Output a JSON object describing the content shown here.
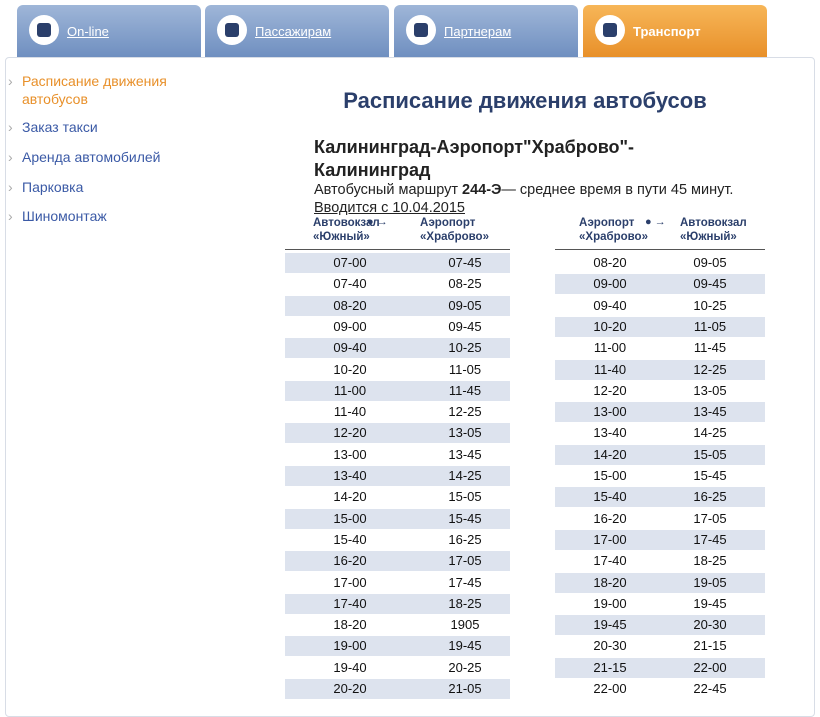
{
  "tabs": [
    "On-line",
    "Пассажирам",
    "Партнерам",
    "Транспорт"
  ],
  "sidebar": [
    "Расписание движения автобусов",
    "Заказ такси",
    "Аренда автомобилей",
    "Парковка",
    "Шиномонтаж"
  ],
  "title": "Расписание движения автобусов",
  "route": {
    "title": "Калининград-Аэропорт\"Храброво\"-Калининград",
    "desc_prefix": "Автобусный маршрут",
    "route_number": "244-Э",
    "desc_suffix": "— среднее время в пути 45 минут.",
    "link": "Вводится с 10.04.2015"
  },
  "tables": [
    {
      "headers": [
        "Автовокзал «Южный»",
        "Аэропорт «Храброво»"
      ],
      "rows": [
        [
          "07-00",
          "07-45"
        ],
        [
          "07-40",
          "08-25"
        ],
        [
          "08-20",
          "09-05"
        ],
        [
          "09-00",
          "09-45"
        ],
        [
          "09-40",
          "10-25"
        ],
        [
          "10-20",
          "11-05"
        ],
        [
          "11-00",
          "11-45"
        ],
        [
          "11-40",
          "12-25"
        ],
        [
          "12-20",
          "13-05"
        ],
        [
          "13-00",
          "13-45"
        ],
        [
          "13-40",
          "14-25"
        ],
        [
          "14-20",
          "15-05"
        ],
        [
          "15-00",
          "15-45"
        ],
        [
          "15-40",
          "16-25"
        ],
        [
          "16-20",
          "17-05"
        ],
        [
          "17-00",
          "17-45"
        ],
        [
          "17-40",
          "18-25"
        ],
        [
          "18-20",
          "1905"
        ],
        [
          "19-00",
          "19-45"
        ],
        [
          "19-40",
          "20-25"
        ],
        [
          "20-20",
          "21-05"
        ]
      ]
    },
    {
      "headers": [
        "Аэропорт «Храброво»",
        "Автовокзал «Южный»"
      ],
      "rows": [
        [
          "08-20",
          "09-05"
        ],
        [
          "09-00",
          "09-45"
        ],
        [
          "09-40",
          "10-25"
        ],
        [
          "10-20",
          "11-05"
        ],
        [
          "11-00",
          "11-45"
        ],
        [
          "11-40",
          "12-25"
        ],
        [
          "12-20",
          "13-05"
        ],
        [
          "13-00",
          "13-45"
        ],
        [
          "13-40",
          "14-25"
        ],
        [
          "14-20",
          "15-05"
        ],
        [
          "15-00",
          "15-45"
        ],
        [
          "15-40",
          "16-25"
        ],
        [
          "16-20",
          "17-05"
        ],
        [
          "17-00",
          "17-45"
        ],
        [
          "17-40",
          "18-25"
        ],
        [
          "18-20",
          "19-05"
        ],
        [
          "19-00",
          "19-45"
        ],
        [
          "19-45",
          "20-30"
        ],
        [
          "20-30",
          "21-15"
        ],
        [
          "21-15",
          "22-00"
        ],
        [
          "22-00",
          "22-45"
        ]
      ]
    }
  ]
}
